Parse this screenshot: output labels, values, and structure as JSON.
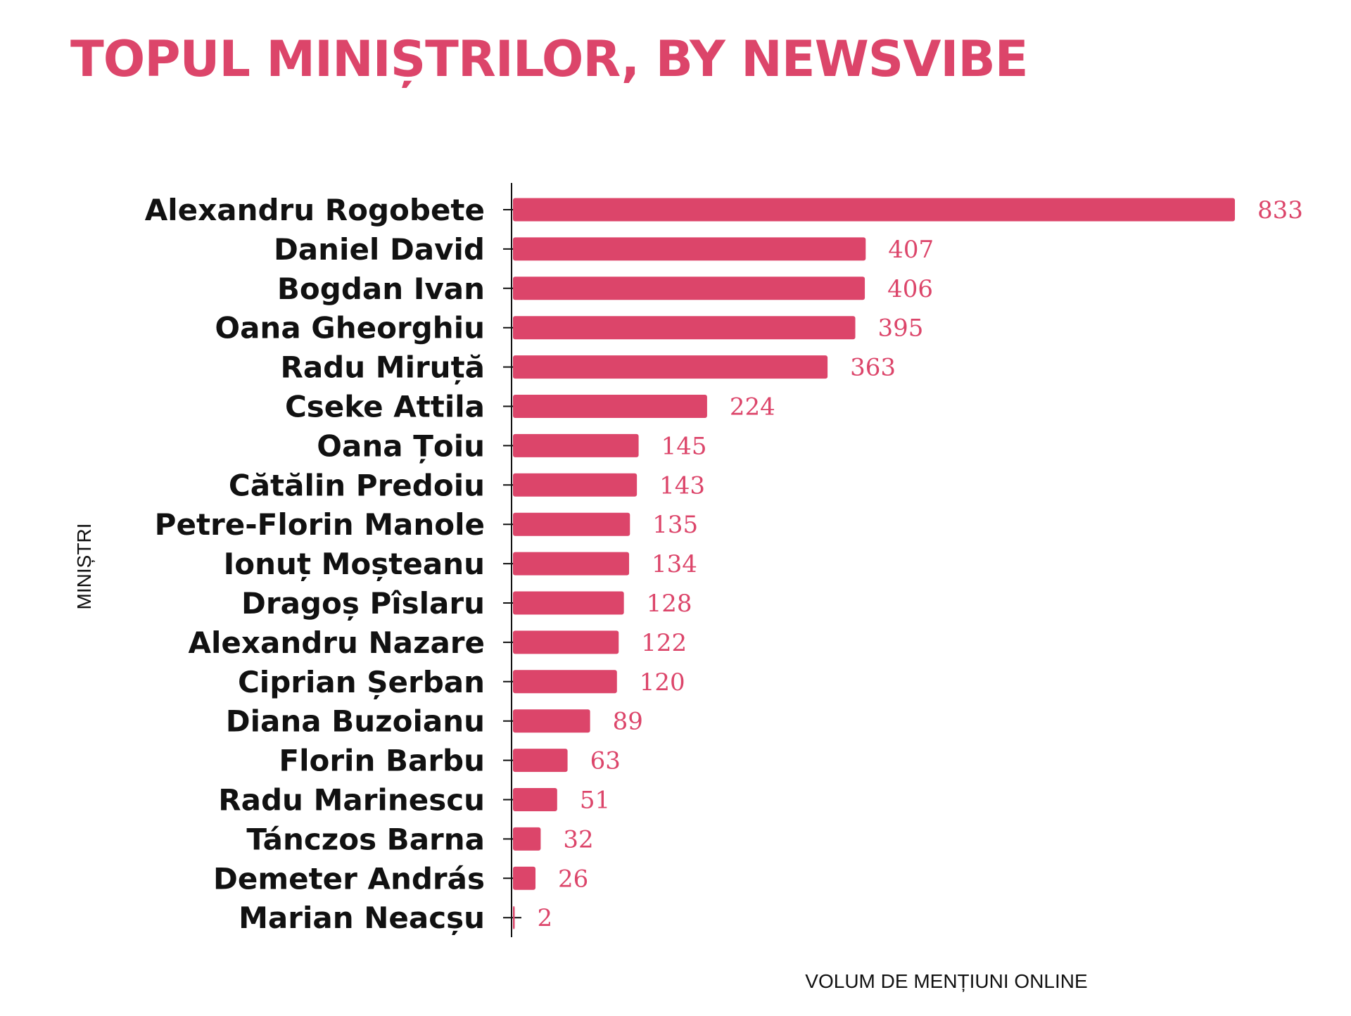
{
  "title": "TOPUL MINIȘTRILOR, BY NEWSVIBE",
  "colors": {
    "accent": "#dc456a",
    "text": "#111111",
    "axis": "#111111"
  },
  "chart_data": {
    "type": "bar",
    "orientation": "horizontal",
    "categories": [
      "Alexandru Rogobete",
      "Daniel David",
      "Bogdan Ivan",
      "Oana Gheorghiu",
      "Radu Miruță",
      "Cseke Attila",
      "Oana Țoiu",
      "Cătălin Predoiu",
      "Petre-Florin Manole",
      "Ionuț Moșteanu",
      "Dragoș Pîslaru",
      "Alexandru Nazare",
      "Ciprian Șerban",
      "Diana Buzoianu",
      "Florin Barbu",
      "Radu Marinescu",
      "Tánczos Barna",
      "Demeter András",
      "Marian Neacșu"
    ],
    "values": [
      833,
      407,
      406,
      395,
      363,
      224,
      145,
      143,
      135,
      134,
      128,
      122,
      120,
      89,
      63,
      51,
      32,
      26,
      2
    ],
    "xlabel": "VOLUM DE MENȚIUNI ONLINE",
    "ylabel": "MINIȘTRI",
    "xlim": [
      0,
      833
    ],
    "grid": false,
    "data_labels": true
  }
}
